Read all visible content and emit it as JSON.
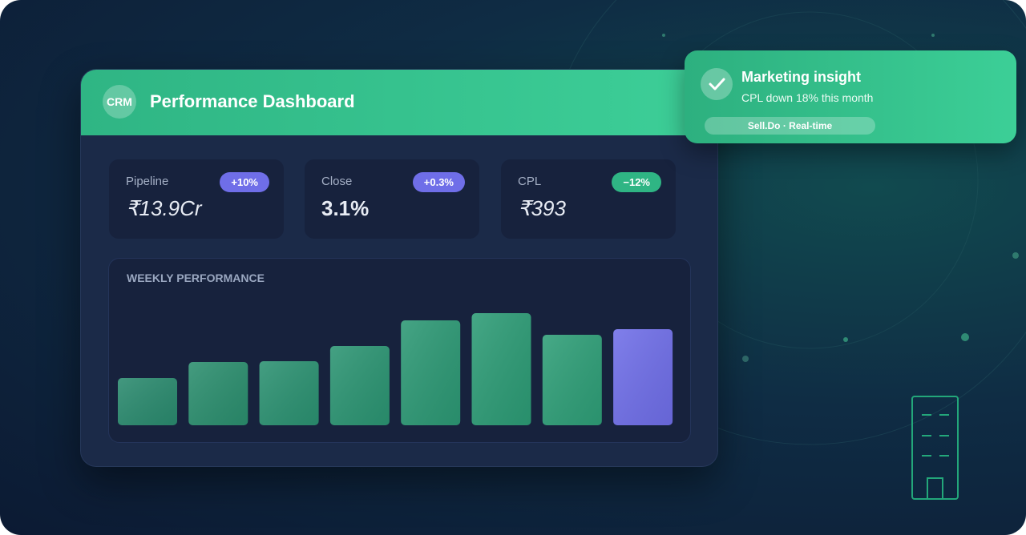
{
  "dashboard": {
    "logo": "CRM",
    "title": "Performance Dashboard",
    "kpis": [
      {
        "label": "Pipeline",
        "value": "₹13.9Cr",
        "badge": "+10%"
      },
      {
        "label": "Close",
        "value": "3.1%",
        "badge": "+0.3%"
      },
      {
        "label": "CPL",
        "value": "₹393",
        "badge": "−12%"
      }
    ]
  },
  "chart_data": {
    "type": "bar",
    "title": "WEEKLY PERFORMANCE",
    "values": [
      59,
      79,
      80,
      99,
      131,
      140,
      113,
      120
    ],
    "color": "#2fa57a",
    "highlight_color": "#6f6ee8"
  },
  "notification": {
    "title": "Marketing insight",
    "message": "CPL down 18% this month",
    "tag": "Sell.Do · Real-time"
  }
}
